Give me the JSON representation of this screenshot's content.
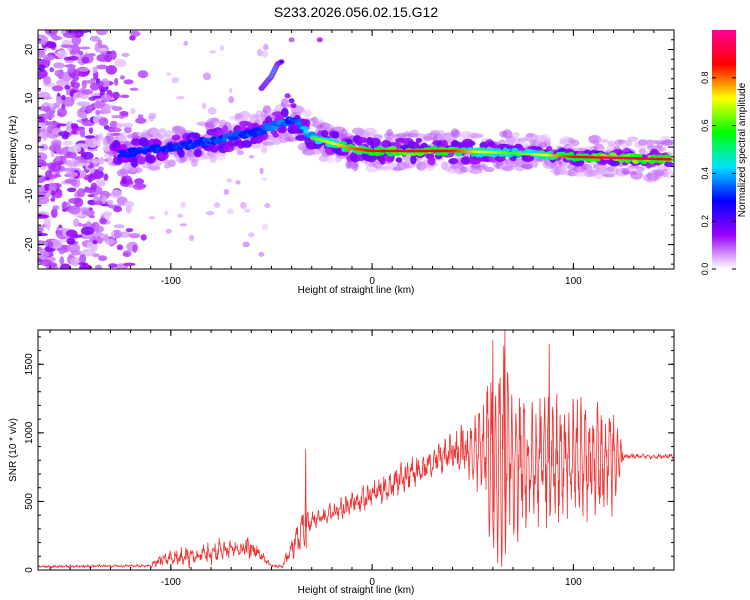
{
  "title": "S233.2026.056.02.15.G12",
  "chart_data": [
    {
      "type": "heatmap",
      "xlabel": "Height of straight line (km)",
      "ylabel": "Frequency (Hz)",
      "xlim": [
        -166,
        150
      ],
      "ylim": [
        -25,
        24
      ],
      "x_ticks": [
        -100,
        0,
        100
      ],
      "y_ticks": [
        -20,
        -10,
        0,
        10,
        20
      ],
      "colorbar": {
        "label": "Normalized spectral amplitude",
        "range": [
          0,
          1
        ],
        "ticks": [
          0.0,
          0.2,
          0.4,
          0.6,
          0.8
        ],
        "colors": [
          "#ffffff",
          "#9900ff",
          "#0000ff",
          "#00e5ff",
          "#00ff00",
          "#ffff00",
          "#ff0000",
          "#ff0099"
        ]
      },
      "ridge": {
        "x": [
          -125,
          -110,
          -90,
          -70,
          -55,
          -48,
          -42,
          -38,
          -30,
          -20,
          -10,
          0,
          20,
          40,
          55,
          70,
          85,
          100,
          120,
          148
        ],
        "freq": [
          -1.5,
          -0.5,
          0.5,
          2,
          3.5,
          4.5,
          5.5,
          5,
          2,
          0.8,
          -0.3,
          -0.8,
          -0.8,
          -0.8,
          -1,
          -1.3,
          -1.6,
          -2,
          -2.2,
          -2.5
        ],
        "amplitude": [
          0.3,
          0.4,
          0.4,
          0.45,
          0.4,
          0.5,
          0.45,
          0.5,
          0.6,
          0.7,
          0.8,
          0.85,
          0.9,
          0.85,
          0.7,
          0.6,
          0.7,
          0.85,
          0.95,
          0.9
        ]
      },
      "branch": {
        "x": [
          -55,
          -50,
          -47,
          -45
        ],
        "freq": [
          12,
          14.5,
          17,
          17.5
        ],
        "amplitude": [
          0.35,
          0.45,
          0.4,
          0.3
        ]
      }
    },
    {
      "type": "line",
      "xlabel": "Height of straight line (km)",
      "ylabel": "SNR (10 * v/v)",
      "xlim": [
        -166,
        150
      ],
      "ylim": [
        0,
        1750
      ],
      "x_ticks": [
        -100,
        0,
        100
      ],
      "y_ticks": [
        0,
        500,
        1000,
        1500
      ],
      "color": "#ee3333",
      "envelope": {
        "x": [
          -166,
          -110,
          -105,
          -90,
          -75,
          -60,
          -55,
          -50,
          -45,
          -40,
          -35,
          -30,
          -20,
          -10,
          0,
          20,
          40,
          55,
          60,
          65,
          70,
          80,
          90,
          100,
          110,
          120,
          125,
          150
        ],
        "center": [
          25,
          30,
          80,
          100,
          140,
          160,
          100,
          30,
          25,
          150,
          300,
          350,
          420,
          480,
          550,
          700,
          870,
          900,
          850,
          850,
          800,
          800,
          780,
          800,
          780,
          790,
          830,
          830
        ],
        "amplitude": [
          8,
          8,
          40,
          60,
          70,
          70,
          30,
          10,
          10,
          70,
          120,
          60,
          60,
          70,
          80,
          90,
          100,
          300,
          650,
          700,
          550,
          450,
          420,
          400,
          380,
          350,
          15,
          15
        ]
      },
      "spikes": [
        {
          "x": -33,
          "y": 880
        },
        {
          "x": 60,
          "y": 1680
        },
        {
          "x": 66,
          "y": 1780
        },
        {
          "x": 88,
          "y": 1650
        }
      ]
    }
  ]
}
